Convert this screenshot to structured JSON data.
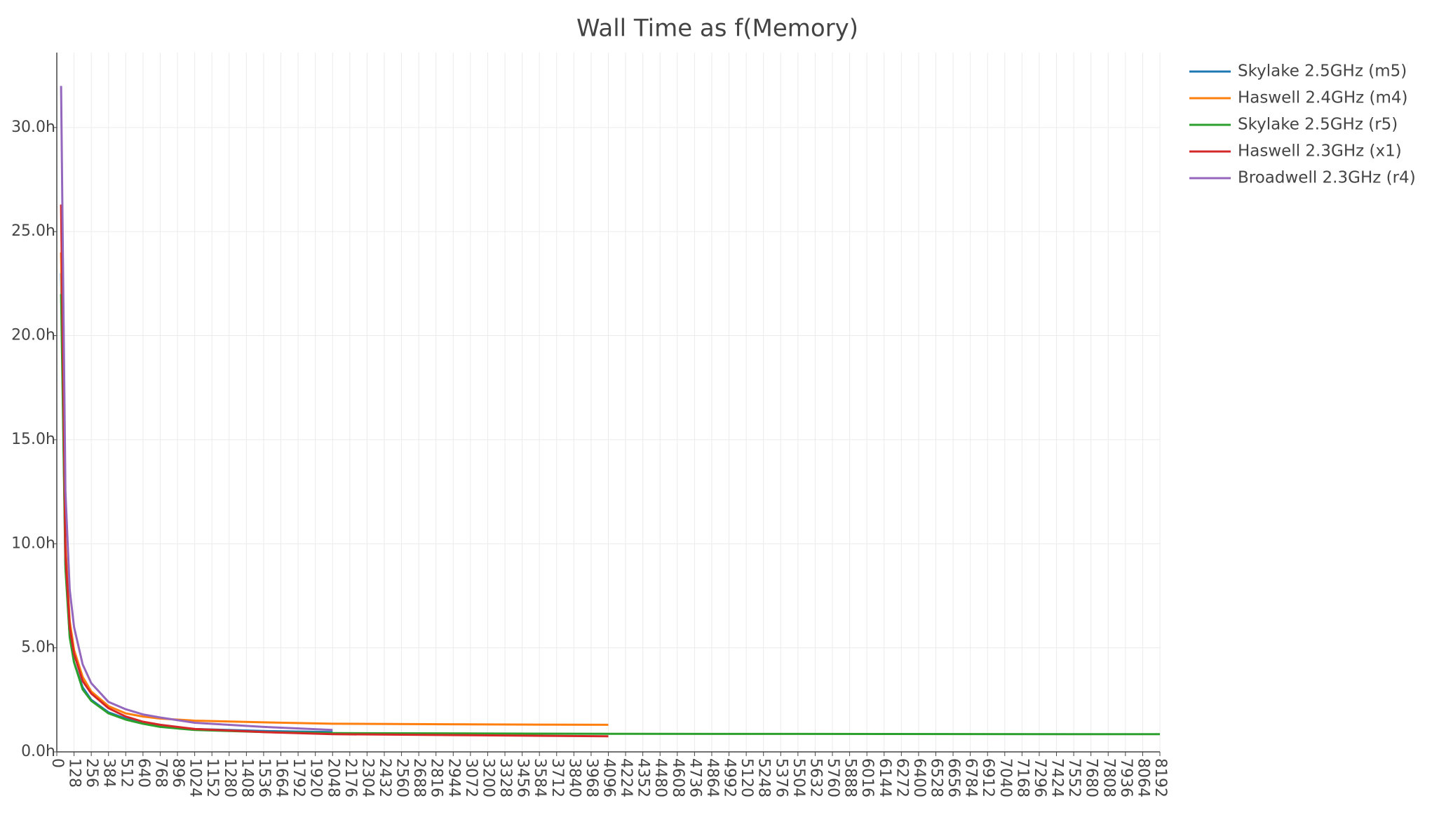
{
  "chart_data": {
    "type": "line",
    "title": "Wall Time as f(Memory)",
    "xlim": [
      0,
      8192
    ],
    "ylim": [
      0,
      33.6
    ],
    "xticks": [
      0,
      128,
      256,
      384,
      512,
      640,
      768,
      896,
      1024,
      1152,
      1280,
      1408,
      1536,
      1664,
      1792,
      1920,
      2048,
      2176,
      2304,
      2432,
      2560,
      2688,
      2816,
      2944,
      3072,
      3200,
      3328,
      3456,
      3584,
      3712,
      3840,
      3968,
      4096,
      4224,
      4352,
      4480,
      4608,
      4736,
      4864,
      4992,
      5120,
      5248,
      5376,
      5504,
      5632,
      5760,
      5888,
      6016,
      6144,
      6272,
      6400,
      6528,
      6656,
      6784,
      6912,
      7040,
      7168,
      7296,
      7424,
      7552,
      7680,
      7808,
      7936,
      8064,
      8192
    ],
    "yticks": [
      {
        "value": 0,
        "label": "0.0h"
      },
      {
        "value": 5,
        "label": "5.0h"
      },
      {
        "value": 10,
        "label": "10.0h"
      },
      {
        "value": 15,
        "label": "15.0h"
      },
      {
        "value": 20,
        "label": "20.0h"
      },
      {
        "value": 25,
        "label": "25.0h"
      },
      {
        "value": 30,
        "label": "30.0h"
      }
    ],
    "grid": true,
    "series": [
      {
        "name": "Skylake 2.5GHz (m5)",
        "color": "#1f77b4",
        "x": [
          32,
          64,
          96,
          128,
          192,
          256,
          384,
          512,
          640,
          768,
          1024,
          1536,
          2048
        ],
        "values": [
          23.0,
          9.0,
          5.6,
          4.3,
          3.1,
          2.5,
          1.9,
          1.6,
          1.4,
          1.25,
          1.1,
          1.0,
          0.95
        ]
      },
      {
        "name": "Haswell 2.4GHz (m4)",
        "color": "#ff7f0e",
        "x": [
          32,
          64,
          96,
          128,
          192,
          256,
          384,
          512,
          640,
          768,
          1024,
          1536,
          2048,
          3072,
          4096
        ],
        "values": [
          24.0,
          10.0,
          6.3,
          4.9,
          3.6,
          2.9,
          2.2,
          1.85,
          1.7,
          1.6,
          1.5,
          1.42,
          1.35,
          1.32,
          1.3
        ]
      },
      {
        "name": "Skylake 2.5GHz (r5)",
        "color": "#2ca02c",
        "x": [
          32,
          64,
          96,
          128,
          192,
          256,
          384,
          512,
          640,
          768,
          1024,
          1536,
          2048,
          4096,
          6144,
          8192
        ],
        "values": [
          22.0,
          8.8,
          5.5,
          4.3,
          3.0,
          2.45,
          1.85,
          1.55,
          1.35,
          1.2,
          1.05,
          0.95,
          0.9,
          0.87,
          0.86,
          0.85
        ]
      },
      {
        "name": "Haswell 2.3GHz (x1)",
        "color": "#d62728",
        "x": [
          32,
          64,
          96,
          128,
          192,
          256,
          384,
          512,
          640,
          768,
          1024,
          1536,
          2048,
          3072,
          4096
        ],
        "values": [
          26.3,
          9.5,
          6.0,
          4.7,
          3.4,
          2.8,
          2.1,
          1.7,
          1.45,
          1.3,
          1.1,
          0.95,
          0.85,
          0.8,
          0.75
        ]
      },
      {
        "name": "Broadwell 2.3GHz (r4)",
        "color": "#9467bd",
        "x": [
          32,
          64,
          96,
          128,
          192,
          256,
          384,
          512,
          640,
          768,
          1024,
          1536,
          2048
        ],
        "values": [
          32.0,
          12.5,
          7.8,
          6.0,
          4.2,
          3.3,
          2.4,
          2.05,
          1.8,
          1.65,
          1.4,
          1.2,
          1.05
        ]
      }
    ]
  }
}
